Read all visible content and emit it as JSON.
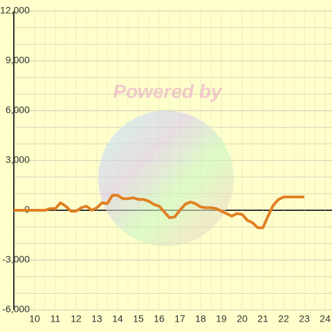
{
  "chart_data": {
    "type": "line",
    "watermark": "Powered by",
    "x": [
      9,
      10.5,
      10.75,
      11,
      11.25,
      11.5,
      11.75,
      12,
      12.25,
      12.5,
      12.75,
      13,
      13.25,
      13.5,
      13.75,
      14,
      14.25,
      14.5,
      14.75,
      15,
      15.25,
      15.5,
      15.75,
      16,
      16.25,
      16.5,
      16.75,
      17,
      17.25,
      17.5,
      17.75,
      18,
      18.25,
      18.5,
      18.75,
      19,
      19.25,
      19.5,
      19.75,
      20,
      20.25,
      20.5,
      20.75,
      21,
      21.25,
      21.5,
      21.75,
      22,
      23
    ],
    "values": [
      0,
      0,
      100,
      100,
      450,
      250,
      -50,
      -50,
      150,
      250,
      0,
      150,
      450,
      400,
      900,
      900,
      700,
      700,
      750,
      650,
      650,
      550,
      350,
      250,
      -100,
      -450,
      -400,
      0,
      350,
      500,
      400,
      200,
      150,
      150,
      100,
      -50,
      -200,
      -350,
      -200,
      -250,
      -600,
      -750,
      -1050,
      -1050,
      -350,
      300,
      650,
      800,
      800
    ],
    "color": "#e07f22",
    "xlim": [
      9,
      24.33
    ],
    "xticks": [
      10,
      11,
      12,
      13,
      14,
      15,
      16,
      17,
      18,
      19,
      20,
      21,
      22,
      23,
      24
    ],
    "ylim": [
      -6000,
      12000
    ],
    "yticks": [
      {
        "value": -6000,
        "label": "-6,000"
      },
      {
        "value": -3000,
        "label": "-3,000"
      },
      0,
      {
        "value": 3000,
        "label": "3,000"
      },
      {
        "value": 6000,
        "label": "6,000"
      },
      {
        "value": 9000,
        "label": "9,000"
      },
      {
        "value": 12000,
        "label": "12,000"
      }
    ],
    "grid": true
  }
}
